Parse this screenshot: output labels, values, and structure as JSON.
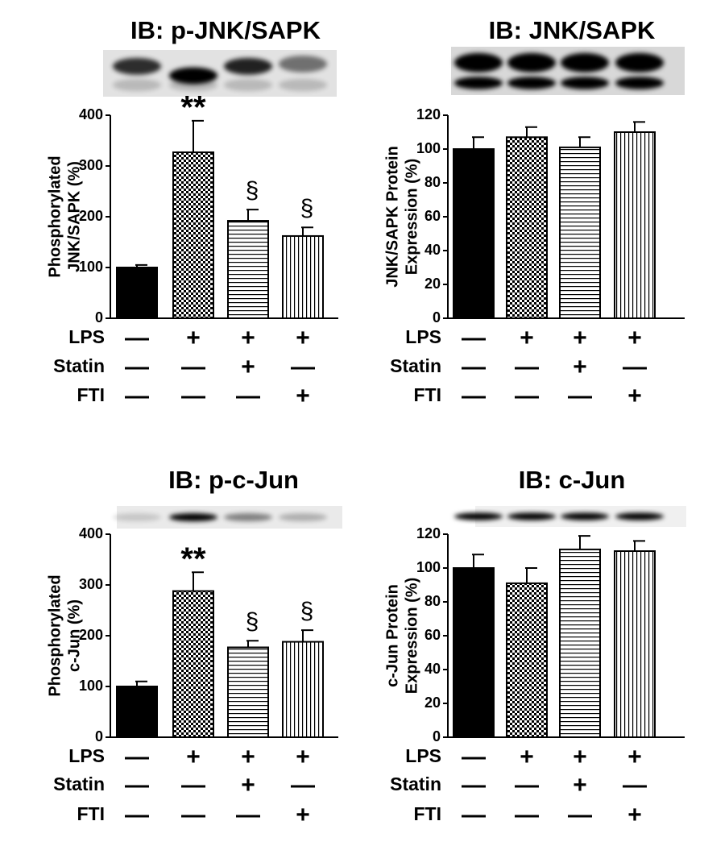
{
  "chart_data": [
    {
      "type": "bar",
      "title": "IB: p-JNK/SAPK",
      "ylabel": [
        "Phosphorylated",
        "JNK/SAPK (%)"
      ],
      "values": [
        100,
        327,
        192,
        162
      ],
      "errors": [
        5,
        62,
        22,
        17
      ],
      "annotations": [
        null,
        "**",
        "§",
        "§"
      ],
      "patterns": [
        "solid",
        "checker",
        "hlines",
        "vlines"
      ],
      "ylim": [
        0,
        400
      ],
      "yticks": [
        0,
        100,
        200,
        300,
        400
      ],
      "conditions": [
        {
          "name": "LPS",
          "signs": [
            "—",
            "+",
            "+",
            "+"
          ]
        },
        {
          "name": "Statin",
          "signs": [
            "—",
            "—",
            "+",
            "—"
          ]
        },
        {
          "name": "FTI",
          "signs": [
            "—",
            "—",
            "—",
            "+"
          ]
        }
      ]
    },
    {
      "type": "bar",
      "title": "IB: JNK/SAPK",
      "ylabel": [
        "JNK/SAPK Protein",
        "Expression (%)"
      ],
      "values": [
        100,
        107,
        101,
        110
      ],
      "errors": [
        7,
        6,
        6,
        6
      ],
      "annotations": [
        null,
        null,
        null,
        null
      ],
      "patterns": [
        "solid",
        "checker",
        "hlines",
        "vlines"
      ],
      "ylim": [
        0,
        120
      ],
      "yticks": [
        0,
        20,
        40,
        60,
        80,
        100,
        120
      ],
      "conditions": [
        {
          "name": "LPS",
          "signs": [
            "—",
            "+",
            "+",
            "+"
          ]
        },
        {
          "name": "Statin",
          "signs": [
            "—",
            "—",
            "+",
            "—"
          ]
        },
        {
          "name": "FTI",
          "signs": [
            "—",
            "—",
            "—",
            "+"
          ]
        }
      ]
    },
    {
      "type": "bar",
      "title": "IB: p-c-Jun",
      "ylabel": [
        "Phosphorylated",
        "c-Jun (%)"
      ],
      "values": [
        100,
        288,
        177,
        188
      ],
      "errors": [
        10,
        37,
        13,
        23
      ],
      "annotations": [
        null,
        "**",
        "§",
        "§"
      ],
      "patterns": [
        "solid",
        "checker",
        "hlines",
        "vlines"
      ],
      "ylim": [
        0,
        400
      ],
      "yticks": [
        0,
        100,
        200,
        300,
        400
      ],
      "conditions": [
        {
          "name": "LPS",
          "signs": [
            "—",
            "+",
            "+",
            "+"
          ]
        },
        {
          "name": "Statin",
          "signs": [
            "—",
            "—",
            "+",
            "—"
          ]
        },
        {
          "name": "FTI",
          "signs": [
            "—",
            "—",
            "—",
            "+"
          ]
        }
      ]
    },
    {
      "type": "bar",
      "title": "IB: c-Jun",
      "ylabel": [
        "c-Jun Protein",
        "Expression (%)"
      ],
      "values": [
        100,
        91,
        111,
        110
      ],
      "errors": [
        8,
        9,
        8,
        6
      ],
      "annotations": [
        null,
        null,
        null,
        null
      ],
      "patterns": [
        "solid",
        "checker",
        "hlines",
        "vlines"
      ],
      "ylim": [
        0,
        120
      ],
      "yticks": [
        0,
        20,
        40,
        60,
        80,
        100,
        120
      ],
      "conditions": [
        {
          "name": "LPS",
          "signs": [
            "—",
            "+",
            "+",
            "+"
          ]
        },
        {
          "name": "Statin",
          "signs": [
            "—",
            "—",
            "+",
            "—"
          ]
        },
        {
          "name": "FTI",
          "signs": [
            "—",
            "—",
            "—",
            "+"
          ]
        }
      ]
    }
  ]
}
